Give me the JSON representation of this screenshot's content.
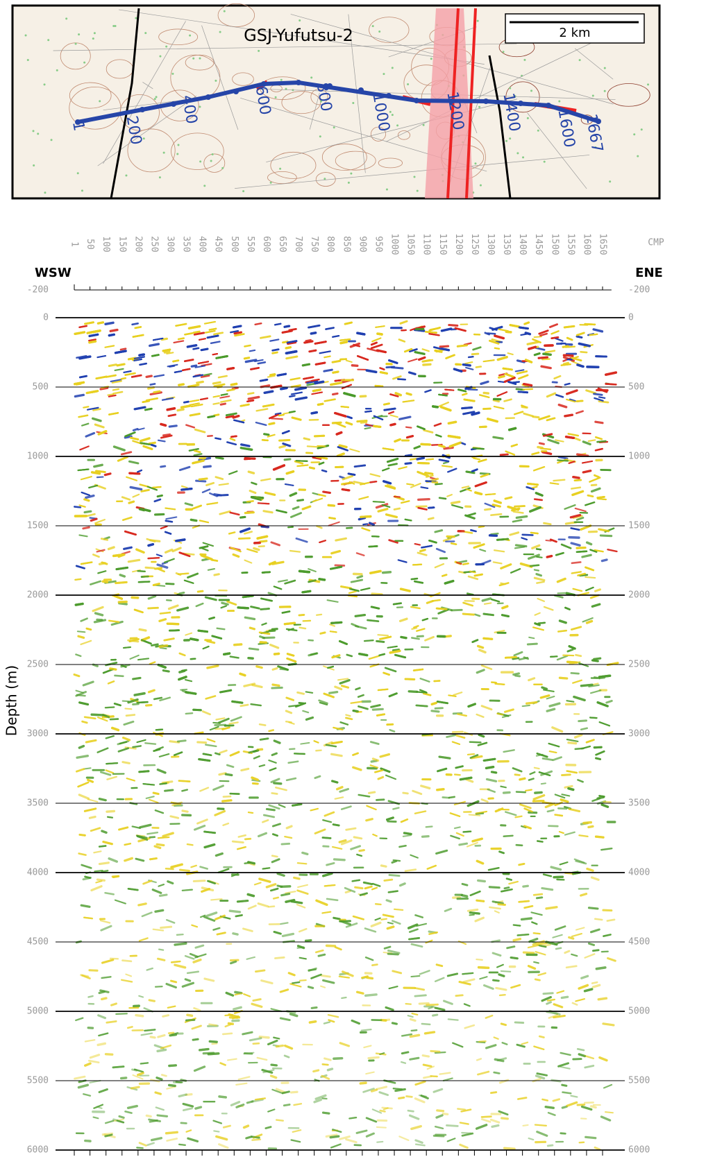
{
  "map": {
    "title": "GSJ-Yufutsu-2",
    "scale_label": "2 km",
    "cmp_labels": [
      "1",
      "200",
      "400",
      "600",
      "800",
      "1000",
      "1200",
      "1400",
      "1600",
      "1667"
    ]
  },
  "chart_data": {
    "type": "seismic-section",
    "xlabel": "CMP",
    "ylabel": "Depth (m)",
    "left_label": "WSW",
    "right_label": "ENE",
    "xlim": [
      1,
      1667
    ],
    "xticks": [
      1,
      50,
      100,
      150,
      200,
      250,
      300,
      350,
      400,
      450,
      500,
      550,
      600,
      650,
      700,
      750,
      800,
      850,
      900,
      950,
      1000,
      1050,
      1100,
      1150,
      1200,
      1250,
      1300,
      1350,
      1400,
      1450,
      1500,
      1550,
      1600,
      1650
    ],
    "ylim": [
      -200,
      6000
    ],
    "yticks": [
      -200,
      0,
      500,
      1000,
      1500,
      2000,
      2500,
      3000,
      3500,
      4000,
      4500,
      5000,
      5500,
      6000
    ],
    "grid": true
  }
}
